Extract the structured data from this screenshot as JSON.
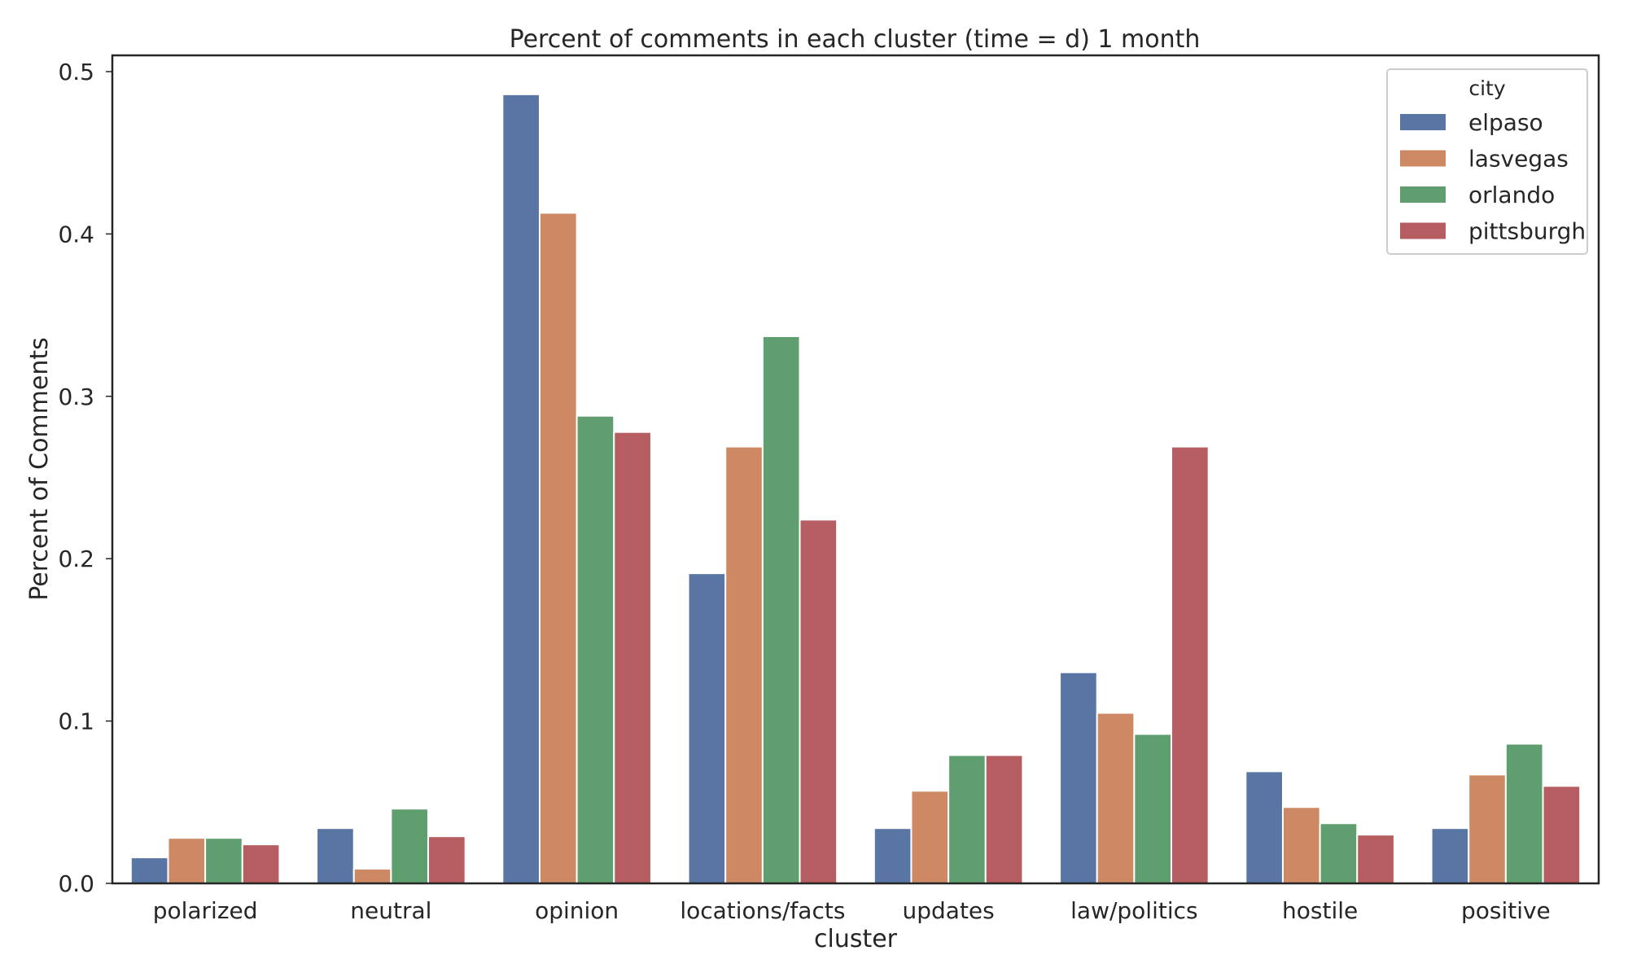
{
  "chart_data": {
    "type": "bar",
    "title": "Percent of comments in each cluster (time = d) 1 month",
    "xlabel": "cluster",
    "ylabel": "Percent of Comments",
    "ylim": [
      0,
      0.51
    ],
    "yticks": [
      0.0,
      0.1,
      0.2,
      0.3,
      0.4,
      0.5
    ],
    "ytick_labels": [
      "0.0",
      "0.1",
      "0.2",
      "0.3",
      "0.4",
      "0.5"
    ],
    "categories": [
      "polarized",
      "neutral",
      "opinion",
      "locations/facts",
      "updates",
      "law/politics",
      "hostile",
      "positive"
    ],
    "grid": false,
    "legend": {
      "title": "city",
      "position": "top-right"
    },
    "series": [
      {
        "name": "elpaso",
        "color": "#5875a4",
        "values": [
          0.016,
          0.034,
          0.486,
          0.191,
          0.034,
          0.13,
          0.069,
          0.034
        ]
      },
      {
        "name": "lasvegas",
        "color": "#cc8963",
        "values": [
          0.028,
          0.009,
          0.413,
          0.269,
          0.057,
          0.105,
          0.047,
          0.067
        ]
      },
      {
        "name": "orlando",
        "color": "#5f9e6e",
        "values": [
          0.028,
          0.046,
          0.288,
          0.337,
          0.079,
          0.092,
          0.037,
          0.086
        ]
      },
      {
        "name": "pittsburgh",
        "color": "#b55d60",
        "values": [
          0.024,
          0.029,
          0.278,
          0.224,
          0.079,
          0.269,
          0.03,
          0.06
        ]
      }
    ]
  }
}
